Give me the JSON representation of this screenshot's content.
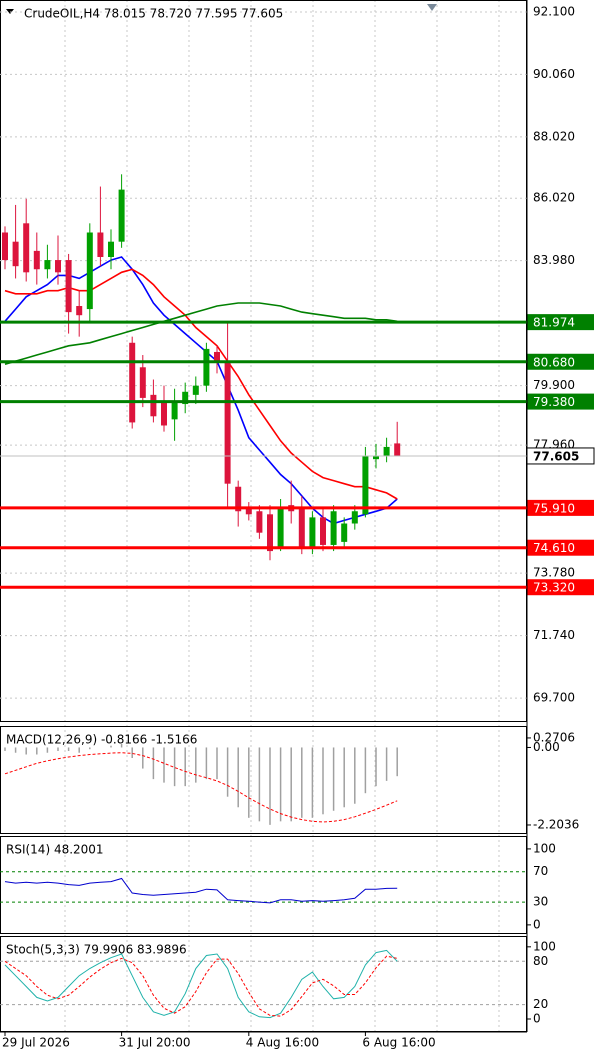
{
  "chart_data": [
    {
      "type": "candlestick",
      "title": "CrudeOIL,H4  78.015 78.720 77.595 77.605",
      "categories": [
        "29 Jul 2026",
        null,
        null,
        null,
        null,
        null,
        null,
        null,
        null,
        null,
        null,
        "31 Jul 20:00",
        null,
        null,
        null,
        null,
        null,
        null,
        null,
        null,
        null,
        null,
        null,
        "4 Aug 16:00",
        null,
        null,
        null,
        null,
        null,
        null,
        null,
        null,
        null,
        null,
        "6 Aug 16:00",
        null,
        null,
        null
      ],
      "open": [
        84.9,
        84.6,
        85.2,
        84.3,
        83.7,
        84.0,
        84.0,
        82.5,
        82.4,
        84.9,
        84.1,
        84.6,
        81.3,
        80.5,
        79.6,
        79.4,
        78.8,
        79.3,
        79.6,
        79.9,
        81.0,
        80.7,
        76.6,
        75.9,
        75.8,
        75.7,
        74.6,
        76.0,
        75.9,
        74.6,
        75.6,
        74.7,
        74.8,
        75.4,
        75.7,
        77.5,
        77.6,
        78.015
      ],
      "high": [
        85.1,
        85.8,
        86.0,
        84.9,
        84.5,
        84.8,
        84.2,
        83.0,
        85.2,
        86.4,
        85.0,
        86.8,
        81.5,
        80.9,
        80.1,
        79.9,
        79.8,
        80.0,
        80.2,
        81.3,
        81.2,
        82.0,
        76.8,
        76.1,
        76.0,
        76.0,
        76.2,
        76.8,
        76.3,
        75.8,
        75.9,
        76.0,
        75.6,
        76.0,
        77.9,
        78.0,
        78.2,
        78.72
      ],
      "low": [
        83.7,
        83.4,
        83.3,
        83.2,
        83.4,
        83.2,
        81.6,
        81.5,
        82.0,
        83.8,
        83.7,
        84.4,
        78.5,
        79.2,
        78.7,
        78.4,
        78.1,
        79.0,
        79.3,
        79.7,
        80.3,
        75.9,
        75.3,
        75.5,
        74.9,
        74.2,
        74.5,
        75.4,
        74.4,
        74.4,
        74.5,
        74.5,
        74.6,
        75.2,
        75.6,
        77.2,
        77.4,
        77.595
      ],
      "close": [
        84.0,
        83.8,
        83.6,
        83.7,
        84.0,
        83.6,
        82.3,
        82.2,
        84.9,
        84.1,
        84.6,
        86.3,
        78.7,
        79.5,
        78.9,
        78.6,
        79.4,
        79.7,
        79.9,
        81.1,
        80.7,
        76.7,
        75.8,
        75.7,
        75.1,
        74.5,
        75.9,
        75.8,
        74.6,
        75.6,
        74.7,
        75.8,
        75.4,
        75.8,
        77.6,
        77.6,
        77.9,
        77.605
      ],
      "up_color": "#00a000",
      "down_color": "#dc143c",
      "series": [
        {
          "color": "#0000ff",
          "values": [
            82.0,
            82.4,
            82.8,
            83.0,
            83.2,
            83.5,
            83.5,
            83.4,
            83.6,
            83.8,
            84.0,
            84.1,
            83.7,
            83.2,
            82.6,
            82.2,
            81.9,
            81.6,
            81.3,
            81.0,
            80.7,
            79.9,
            79.1,
            78.2,
            77.8,
            77.4,
            77.0,
            76.7,
            76.3,
            75.9,
            75.6,
            75.4,
            75.5,
            75.6,
            75.7,
            75.8,
            75.9,
            76.2
          ]
        },
        {
          "color": "#ff0000",
          "values": [
            83.0,
            82.9,
            82.9,
            82.9,
            83.0,
            83.0,
            83.1,
            83.0,
            83.0,
            83.2,
            83.4,
            83.6,
            83.7,
            83.5,
            83.2,
            82.8,
            82.5,
            82.2,
            81.8,
            81.5,
            81.2,
            80.7,
            80.2,
            79.6,
            79.1,
            78.6,
            78.1,
            77.7,
            77.4,
            77.1,
            76.9,
            76.8,
            76.7,
            76.6,
            76.6,
            76.5,
            76.4,
            76.2
          ]
        },
        {
          "color": "#008000",
          "values": [
            80.6,
            80.7,
            80.8,
            80.9,
            81.0,
            81.1,
            81.2,
            81.25,
            81.3,
            81.4,
            81.5,
            81.6,
            81.7,
            81.8,
            81.9,
            82.0,
            82.1,
            82.2,
            82.3,
            82.4,
            82.5,
            82.55,
            82.6,
            82.6,
            82.6,
            82.55,
            82.5,
            82.4,
            82.3,
            82.25,
            82.2,
            82.15,
            82.1,
            82.1,
            82.1,
            82.05,
            82.05,
            82.0
          ]
        }
      ],
      "hlines": [
        {
          "value": 81.974,
          "label": "81.974",
          "color": "#008000"
        },
        {
          "value": 80.68,
          "label": "80.680",
          "color": "#008000"
        },
        {
          "value": 79.38,
          "label": "79.380",
          "color": "#008000"
        },
        {
          "value": 75.91,
          "label": "75.910",
          "color": "#ff0000"
        },
        {
          "value": 74.61,
          "label": "74.610",
          "color": "#ff0000"
        },
        {
          "value": 73.32,
          "label": "73.320",
          "color": "#ff0000"
        }
      ],
      "last": 77.605,
      "ylim": [
        68.92,
        92.49
      ],
      "yticks": [
        {
          "value": 92.1,
          "label": "92.100"
        },
        {
          "value": 90.06,
          "label": "90.060"
        },
        {
          "value": 88.02,
          "label": "88.020"
        },
        {
          "value": 86.02,
          "label": "86.020"
        },
        {
          "value": 83.98,
          "label": "83.980"
        },
        {
          "value": 79.9,
          "label": "79.900"
        },
        {
          "value": 77.96,
          "label": "77.960"
        },
        {
          "value": 73.78,
          "label": "73.780"
        },
        {
          "value": 71.74,
          "label": "71.740"
        },
        {
          "value": 69.7,
          "label": "69.700"
        }
      ],
      "grid": true
    },
    {
      "type": "macd",
      "title": "MACD(12,26,9) -0.8166 -1.5166",
      "series": [
        {
          "color": "#a0a0a0",
          "values": [
            -0.1,
            -0.15,
            -0.2,
            -0.2,
            -0.15,
            -0.1,
            -0.1,
            -0.15,
            -0.05,
            0.0,
            0.05,
            0.1,
            -0.3,
            -0.6,
            -0.9,
            -1.0,
            -1.1,
            -1.1,
            -1.0,
            -0.9,
            -0.9,
            -1.4,
            -1.7,
            -2.0,
            -2.1,
            -2.2,
            -2.1,
            -2.1,
            -2.0,
            -2.0,
            -1.9,
            -1.8,
            -1.7,
            -1.6,
            -1.3,
            -1.1,
            -0.95,
            -0.8166
          ]
        },
        {
          "color": "#ff0000",
          "values": [
            -0.75,
            -0.65,
            -0.55,
            -0.45,
            -0.38,
            -0.32,
            -0.27,
            -0.23,
            -0.2,
            -0.18,
            -0.16,
            -0.15,
            -0.17,
            -0.23,
            -0.33,
            -0.45,
            -0.57,
            -0.68,
            -0.78,
            -0.86,
            -0.95,
            -1.08,
            -1.25,
            -1.43,
            -1.6,
            -1.75,
            -1.88,
            -1.98,
            -2.05,
            -2.1,
            -2.12,
            -2.1,
            -2.05,
            -1.97,
            -1.87,
            -1.76,
            -1.64,
            -1.5166
          ]
        }
      ],
      "ylim": [
        -2.46,
        0.61
      ],
      "yticks": [
        0.2706,
        {
          "value": 0,
          "label": "0.00"
        },
        -2.2036
      ]
    },
    {
      "type": "line",
      "title": "RSI(14) 48.2001",
      "series": [
        {
          "color": "#0000cd",
          "values": [
            57,
            55,
            56,
            55,
            56,
            55,
            53,
            52,
            55,
            56,
            57,
            61,
            42,
            40,
            39,
            40,
            41,
            42,
            43,
            47,
            46,
            33,
            32,
            31,
            30,
            29,
            33,
            33,
            31,
            32,
            31,
            32,
            33,
            35,
            47,
            47,
            48,
            48.2001
          ]
        }
      ],
      "ylim": [
        -12,
        117
      ],
      "yticks": [
        100,
        70,
        30,
        0
      ],
      "level_color": "#008000"
    },
    {
      "type": "line",
      "title": "Stoch(5,3,3) 79.9906 83.9896",
      "series": [
        {
          "color": "#20b2aa",
          "values": [
            75,
            60,
            45,
            30,
            25,
            30,
            45,
            60,
            70,
            78,
            85,
            90,
            60,
            30,
            10,
            5,
            10,
            35,
            70,
            88,
            90,
            70,
            30,
            10,
            3,
            2,
            8,
            30,
            55,
            65,
            45,
            28,
            30,
            45,
            75,
            92,
            95,
            79.9906
          ]
        },
        {
          "color": "#ff0000",
          "dashed": true,
          "values": [
            80,
            70,
            60,
            45,
            33,
            28,
            33,
            45,
            58,
            69,
            78,
            84,
            78,
            60,
            33,
            15,
            8,
            17,
            38,
            64,
            83,
            83,
            63,
            37,
            14,
            5,
            4,
            13,
            31,
            50,
            55,
            46,
            34,
            34,
            50,
            71,
            87,
            83.9896
          ]
        }
      ],
      "ylim": [
        -18,
        115
      ],
      "yticks": [
        100,
        80,
        20,
        0
      ],
      "level_color": "#a0a0a0"
    }
  ]
}
